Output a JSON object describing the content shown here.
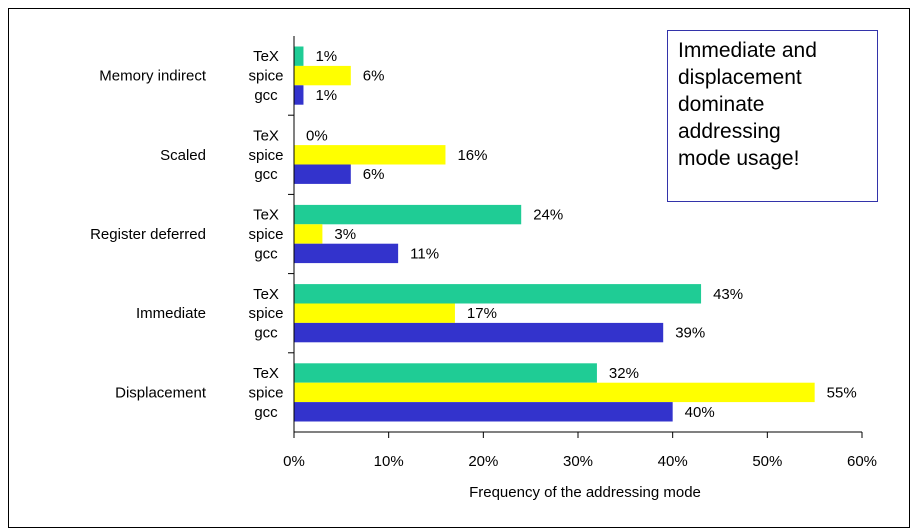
{
  "chart_data": {
    "type": "bar",
    "orientation": "horizontal",
    "categories": [
      "Memory indirect",
      "Scaled",
      "Register deferred",
      "Immediate",
      "Displacement"
    ],
    "series": [
      {
        "name": "TeX",
        "values": [
          1,
          0,
          24,
          43,
          32
        ],
        "labels": [
          "1%",
          "0%",
          "24%",
          "43%",
          "32%"
        ],
        "color": "#1fcc95"
      },
      {
        "name": "spice",
        "values": [
          6,
          16,
          3,
          17,
          55
        ],
        "labels": [
          "6%",
          "16%",
          "3%",
          "17%",
          "55%"
        ],
        "color": "#ffff00"
      },
      {
        "name": "gcc",
        "values": [
          1,
          6,
          11,
          39,
          40
        ],
        "labels": [
          "1%",
          "6%",
          "11%",
          "39%",
          "40%"
        ],
        "color": "#3333cc"
      }
    ],
    "xlabel": "Frequency of the addressing mode",
    "xlim": [
      0,
      60
    ],
    "xticks": [
      0,
      10,
      20,
      30,
      40,
      50,
      60
    ],
    "xtick_labels": [
      "0%",
      "10%",
      "20%",
      "30%",
      "40%",
      "50%",
      "60%"
    ],
    "grid": false,
    "legend": "none",
    "annotation": {
      "lines": [
        "Immediate and",
        "displacement",
        "dominate",
        "addressing",
        "mode usage!"
      ]
    }
  }
}
